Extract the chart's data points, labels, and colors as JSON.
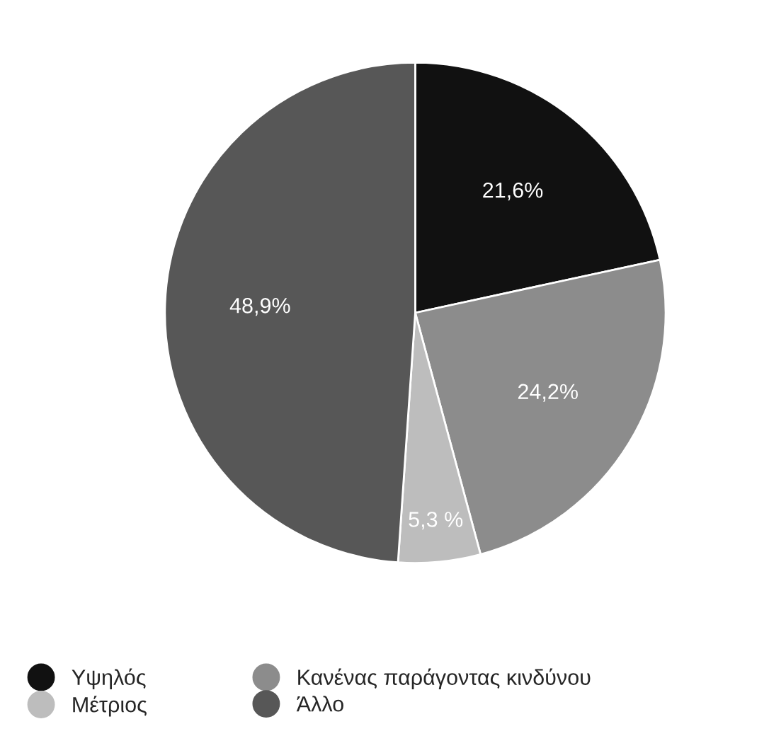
{
  "chart_data": {
    "type": "pie",
    "categories": [
      "Υψηλός",
      "Κανένας παράγοντας κινδύνου",
      "Μέτριος",
      "Άλλο"
    ],
    "values": [
      21.6,
      24.2,
      5.3,
      48.9
    ],
    "colors": [
      "#111111",
      "#8c8c8c",
      "#bdbdbd",
      "#575757"
    ],
    "value_labels": [
      "21,6%",
      "24,2%",
      "5,3 %",
      "48,9%"
    ],
    "legend": "bottom"
  }
}
